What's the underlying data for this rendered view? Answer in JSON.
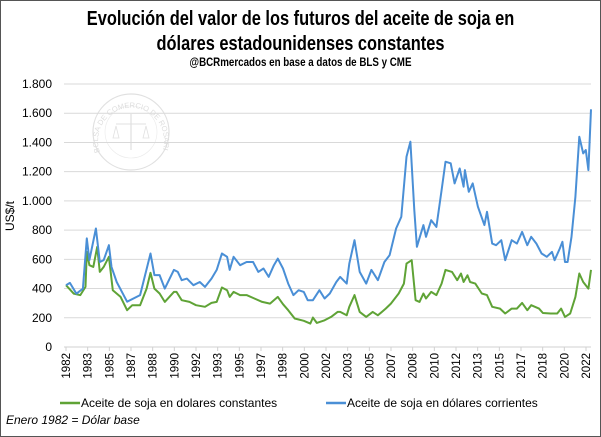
{
  "chart_data": {
    "type": "line",
    "title": "Evolución del valor de los futuros del aceite de soja en dólares estadounidenses constantes",
    "title_lines": [
      "Evolución del valor de los futuros del aceite de soja en",
      "dólares estadounidenses constantes"
    ],
    "subtitle": "@BCRmercados  en base a datos de BLS y CME",
    "xlabel": "",
    "ylabel": "US$/t",
    "xlim": [
      1982,
      2022.4
    ],
    "ylim": [
      0,
      1800
    ],
    "yticks": [
      0,
      200,
      400,
      600,
      800,
      1000,
      1200,
      1400,
      1600,
      1800
    ],
    "ytick_labels": [
      "0",
      "200",
      "400",
      "600",
      "800",
      "1.000",
      "1.200",
      "1.400",
      "1.600",
      "1.800"
    ],
    "xtick_labels": [
      "1982",
      "1983",
      "1985",
      "1987",
      "1988",
      "1990",
      "1992",
      "1993",
      "1995",
      "1997",
      "1998",
      "2000",
      "2002",
      "2003",
      "2005",
      "2007",
      "2008",
      "2010",
      "2012",
      "2013",
      "2015",
      "2017",
      "2018",
      "2020",
      "2022"
    ],
    "grid": true,
    "legend_position": "bottom",
    "footnote": "Enero 1982 = Dólar base",
    "watermark": "BOLSA DE COMERCIO DE ROSARIO",
    "series": [
      {
        "name": "Aceite de soja en dolares constantes",
        "color": "#5fa336",
        "x": [
          1982.0,
          1982.6,
          1983.1,
          1983.5,
          1983.6,
          1983.8,
          1984.1,
          1984.4,
          1984.6,
          1984.9,
          1985.3,
          1985.6,
          1986.2,
          1986.7,
          1987.1,
          1987.7,
          1988.2,
          1988.5,
          1988.8,
          1989.2,
          1989.6,
          1990.3,
          1990.5,
          1990.9,
          1991.5,
          1992.0,
          1992.7,
          1993.2,
          1993.6,
          1994.0,
          1994.4,
          1994.6,
          1994.9,
          1995.4,
          1995.9,
          1996.5,
          1997.1,
          1997.7,
          1998.3,
          1998.7,
          1999.1,
          1999.6,
          2000.3,
          2000.8,
          2001.0,
          2001.3,
          2001.9,
          2002.4,
          2002.9,
          2003.1,
          2003.6,
          2003.8,
          2004.2,
          2004.6,
          2005.1,
          2005.6,
          2006.0,
          2006.6,
          2007.0,
          2007.6,
          2008.0,
          2008.2,
          2008.6,
          2008.9,
          2009.2,
          2009.5,
          2009.7,
          2010.1,
          2010.5,
          2010.9,
          2011.2,
          2011.7,
          2012.1,
          2012.4,
          2012.6,
          2012.9,
          2013.1,
          2013.5,
          2014.0,
          2014.4,
          2014.8,
          2015.4,
          2015.8,
          2016.3,
          2016.7,
          2017.1,
          2017.5,
          2017.8,
          2018.4,
          2018.7,
          2019.3,
          2019.8,
          2020.1,
          2020.4,
          2020.8,
          2021.2,
          2021.5,
          2021.8,
          2022.2,
          2022.4
        ],
        "values": [
          423,
          365,
          355,
          411,
          651,
          560,
          548,
          685,
          514,
          548,
          617,
          389,
          343,
          252,
          286,
          286,
          400,
          508,
          400,
          366,
          309,
          377,
          377,
          320,
          309,
          286,
          275,
          302,
          309,
          407,
          389,
          343,
          377,
          355,
          355,
          332,
          309,
          297,
          343,
          293,
          252,
          195,
          179,
          160,
          201,
          165,
          183,
          206,
          240,
          240,
          217,
          275,
          355,
          240,
          206,
          240,
          217,
          263,
          297,
          366,
          434,
          571,
          594,
          320,
          309,
          366,
          332,
          377,
          355,
          434,
          528,
          514,
          457,
          503,
          445,
          491,
          445,
          434,
          366,
          355,
          275,
          263,
          229,
          263,
          263,
          302,
          252,
          286,
          263,
          233,
          229,
          229,
          263,
          206,
          229,
          343,
          503,
          445,
          400,
          528
        ]
      },
      {
        "name": "Aceite de soja en dólares corrientes",
        "color": "#4a8fd6",
        "x": [
          1982.0,
          1982.3,
          1982.8,
          1983.3,
          1983.6,
          1983.8,
          1984.3,
          1984.6,
          1984.9,
          1985.3,
          1985.5,
          1985.9,
          1986.7,
          1987.7,
          1988.5,
          1988.8,
          1989.2,
          1989.6,
          1990.3,
          1990.6,
          1990.9,
          1991.3,
          1991.8,
          1992.3,
          1992.7,
          1993.2,
          1993.6,
          1994.0,
          1994.4,
          1994.6,
          1994.9,
          1995.4,
          1995.9,
          1996.4,
          1996.8,
          1997.2,
          1997.6,
          1998.0,
          1998.3,
          1998.7,
          1999.1,
          1999.5,
          1999.9,
          2000.3,
          2000.6,
          2001.0,
          2001.5,
          2001.9,
          2002.3,
          2002.8,
          2003.1,
          2003.6,
          2003.8,
          2004.2,
          2004.6,
          2005.1,
          2005.5,
          2006.0,
          2006.5,
          2006.9,
          2007.4,
          2007.8,
          2008.2,
          2008.5,
          2008.8,
          2009.0,
          2009.5,
          2009.7,
          2010.1,
          2010.5,
          2010.9,
          2011.2,
          2011.6,
          2011.9,
          2012.3,
          2012.6,
          2012.7,
          2013.0,
          2013.3,
          2013.7,
          2014.2,
          2014.4,
          2014.8,
          2015.1,
          2015.5,
          2015.8,
          2016.3,
          2016.7,
          2017.1,
          2017.5,
          2017.8,
          2018.2,
          2018.6,
          2019.0,
          2019.4,
          2019.6,
          2020.0,
          2020.2,
          2020.4,
          2020.6,
          2020.9,
          2021.2,
          2021.5,
          2021.8,
          2022.0,
          2022.2,
          2022.4
        ],
        "values": [
          423,
          439,
          365,
          400,
          743,
          595,
          811,
          582,
          595,
          697,
          548,
          445,
          310,
          355,
          640,
          492,
          492,
          400,
          528,
          514,
          457,
          468,
          423,
          445,
          411,
          468,
          528,
          640,
          617,
          528,
          617,
          560,
          582,
          582,
          514,
          537,
          480,
          560,
          605,
          537,
          434,
          355,
          389,
          377,
          320,
          320,
          389,
          332,
          366,
          445,
          480,
          434,
          571,
          731,
          514,
          434,
          528,
          457,
          582,
          628,
          811,
          891,
          1302,
          1405,
          937,
          686,
          834,
          754,
          868,
          822,
          1074,
          1268,
          1257,
          1120,
          1222,
          1097,
          1211,
          1062,
          1120,
          960,
          834,
          925,
          708,
          697,
          731,
          594,
          731,
          708,
          788,
          697,
          754,
          708,
          640,
          617,
          651,
          594,
          674,
          720,
          582,
          582,
          754,
          1028,
          1439,
          1325,
          1348,
          1211,
          1627
        ]
      }
    ]
  }
}
